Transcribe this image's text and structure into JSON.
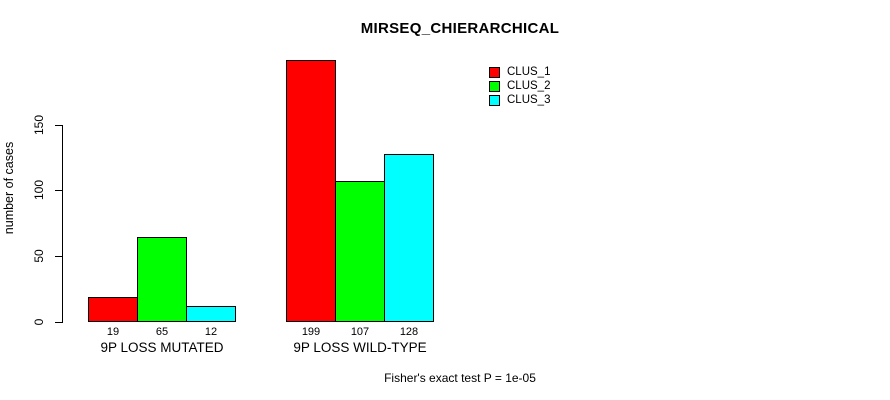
{
  "chart_data": {
    "type": "bar",
    "title": "MIRSEQ_CHIERARCHICAL",
    "xlabel": "",
    "ylabel": "number of cases",
    "ylim": [
      0,
      150
    ],
    "yticks": [
      0,
      50,
      100,
      150
    ],
    "grid": false,
    "legend_position": "inside-top-right",
    "categories": [
      "9P LOSS MUTATED",
      "9P LOSS WILD-TYPE"
    ],
    "series": [
      {
        "name": "CLUS_1",
        "color": "#ff0000",
        "values": [
          19,
          199
        ]
      },
      {
        "name": "CLUS_2",
        "color": "#00ff00",
        "values": [
          65,
          107
        ]
      },
      {
        "name": "CLUS_3",
        "color": "#00ffff",
        "values": [
          12,
          128
        ]
      }
    ],
    "bar_value_labels": [
      [
        "19",
        "65",
        "12"
      ],
      [
        "199",
        "107",
        "128"
      ]
    ]
  },
  "footer_note": "Fisher's exact test P = 1e-05",
  "colors": {
    "background": "#ffffff",
    "text": "#000000",
    "axis": "#000000",
    "bar_border": "#000000",
    "clus_1": "#ff0000",
    "clus_2": "#00ff00",
    "clus_3": "#00ffff"
  }
}
